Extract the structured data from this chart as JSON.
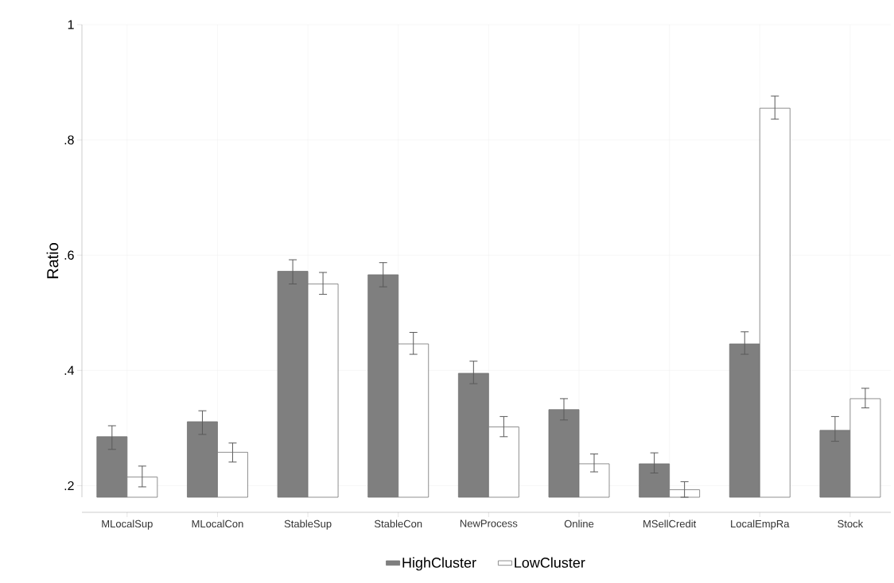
{
  "chart_data": {
    "type": "bar",
    "ylabel": "Ratio",
    "categories": [
      "MLocalSup",
      "MLocalCon",
      "StableSup",
      "StableCon",
      "NewProcess",
      "Online",
      "MSellCredit",
      "LocalEmpRa",
      "Stock"
    ],
    "series": [
      {
        "name": "HighCluster",
        "color": "#7f7f7f",
        "values": [
          0.285,
          0.311,
          0.572,
          0.566,
          0.395,
          0.332,
          0.238,
          0.446,
          0.296
        ],
        "errors": [
          [
            0.263,
            0.304
          ],
          [
            0.289,
            0.33
          ],
          [
            0.55,
            0.592
          ],
          [
            0.545,
            0.587
          ],
          [
            0.377,
            0.416
          ],
          [
            0.314,
            0.351
          ],
          [
            0.222,
            0.257
          ],
          [
            0.428,
            0.467
          ],
          [
            0.277,
            0.32
          ]
        ]
      },
      {
        "name": "LowCluster",
        "color": "#ffffff",
        "values": [
          0.215,
          0.258,
          0.55,
          0.446,
          0.302,
          0.238,
          0.193,
          0.855,
          0.351
        ],
        "errors": [
          [
            0.198,
            0.234
          ],
          [
            0.241,
            0.274
          ],
          [
            0.532,
            0.57
          ],
          [
            0.428,
            0.466
          ],
          [
            0.285,
            0.32
          ],
          [
            0.224,
            0.255
          ],
          [
            0.18,
            0.207
          ],
          [
            0.836,
            0.876
          ],
          [
            0.335,
            0.369
          ]
        ]
      }
    ],
    "ylim": [
      0.18,
      1
    ],
    "yticks": [
      {
        "value": 0.2,
        "label": ".2"
      },
      {
        "value": 0.4,
        "label": ".4"
      },
      {
        "value": 0.6,
        "label": ".6"
      },
      {
        "value": 0.8,
        "label": ".8"
      },
      1
    ],
    "grid": true,
    "legend": "bottom"
  }
}
